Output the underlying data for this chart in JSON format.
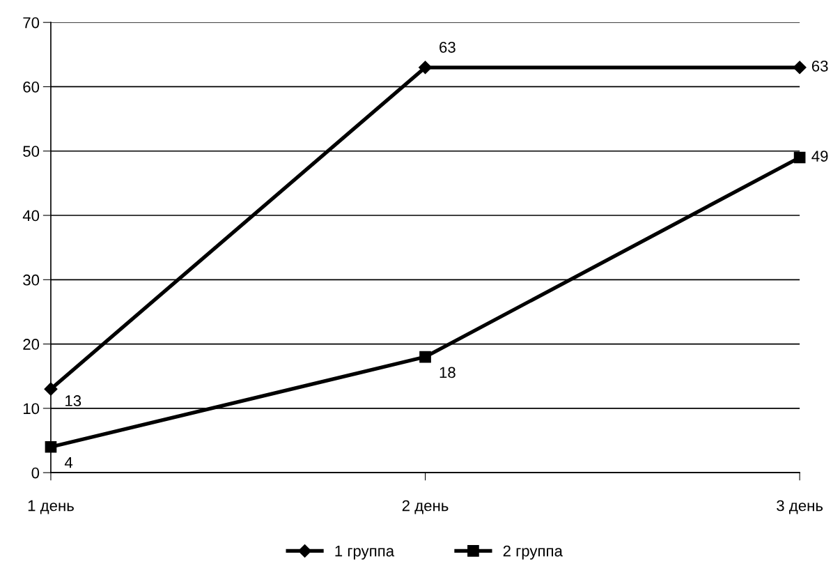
{
  "chart_data": {
    "type": "line",
    "categories": [
      "1 день",
      "2 день",
      "3 день"
    ],
    "series": [
      {
        "name": "1 группа",
        "color": "#000000",
        "marker": "diamond",
        "values": [
          13,
          63,
          63
        ]
      },
      {
        "name": "2 группа",
        "color": "#000000",
        "marker": "square",
        "values": [
          4,
          18,
          49
        ]
      }
    ],
    "ylim": [
      0,
      70
    ],
    "yticks": [
      0,
      10,
      20,
      30,
      40,
      50,
      60,
      70
    ],
    "grid": "y",
    "legend": "bottom",
    "data_labels": true,
    "line_style": "solid"
  }
}
